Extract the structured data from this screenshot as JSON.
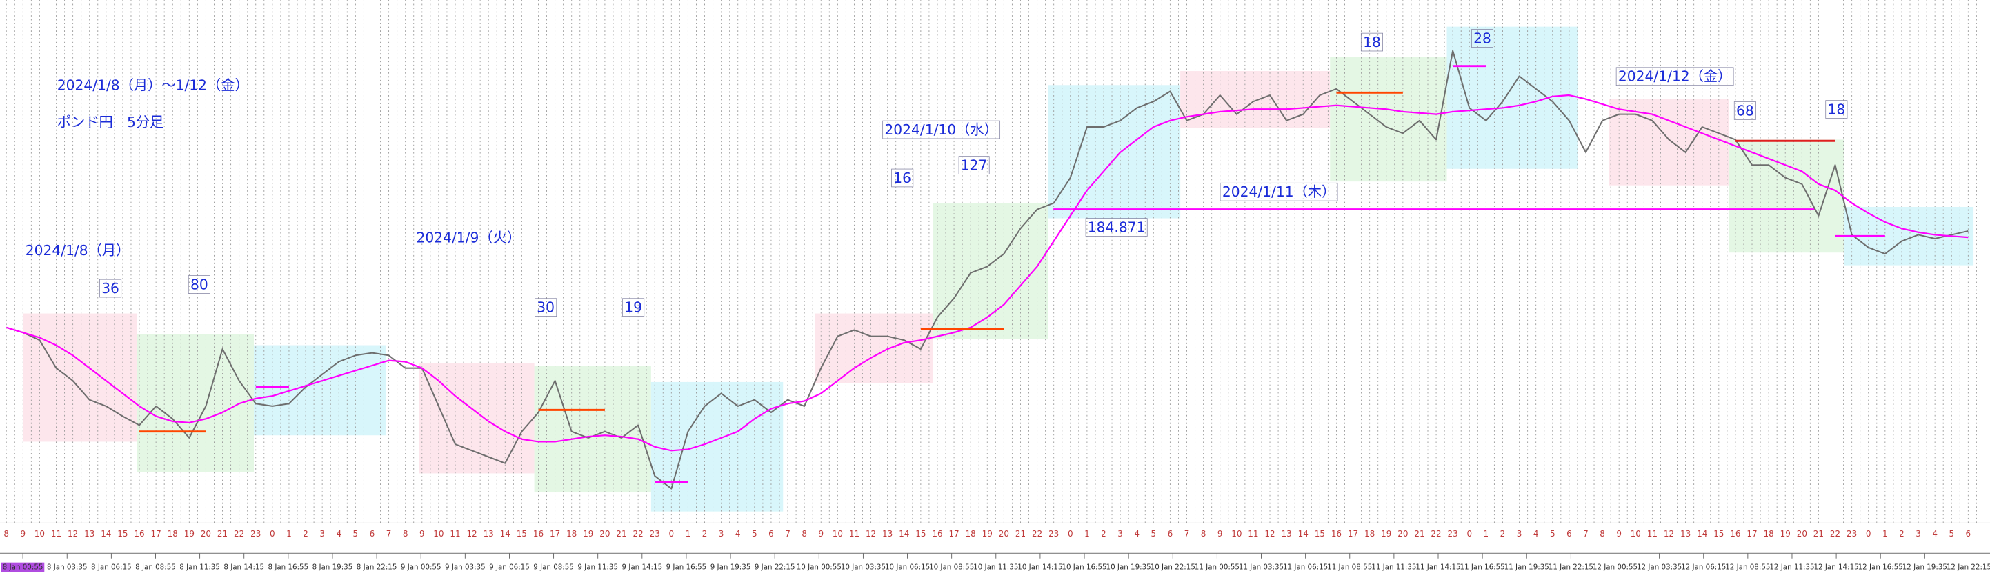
{
  "chart_data": {
    "type": "line",
    "title": "2024/1/8（月）～1/12（金）",
    "subtitle": "ポンド円　5分足",
    "categories": [
      "8",
      "9",
      "10",
      "11",
      "12",
      "13",
      "14",
      "15",
      "16",
      "17",
      "18",
      "19",
      "20",
      "21",
      "22",
      "23",
      "0",
      "1",
      "2",
      "3",
      "4",
      "5",
      "6",
      "7",
      "8",
      "9",
      "10",
      "11",
      "12",
      "13",
      "14",
      "15",
      "16",
      "17",
      "18",
      "19",
      "20",
      "21",
      "22",
      "23",
      "0",
      "1",
      "2",
      "3",
      "4",
      "5",
      "6",
      "7",
      "8",
      "9",
      "10",
      "11",
      "12",
      "13",
      "14",
      "15",
      "16",
      "17",
      "18",
      "19",
      "20",
      "21",
      "22",
      "23",
      "0",
      "1",
      "2",
      "3",
      "4",
      "5",
      "6",
      "7",
      "8",
      "9",
      "10",
      "11",
      "12",
      "13",
      "14",
      "15",
      "16",
      "17",
      "18",
      "19",
      "20",
      "21",
      "22",
      "23",
      "0",
      "1",
      "2",
      "3",
      "4",
      "5",
      "6",
      "7",
      "8",
      "9",
      "10",
      "11",
      "12",
      "13",
      "14",
      "15",
      "16",
      "17",
      "18",
      "19",
      "20",
      "21",
      "22",
      "23",
      "0",
      "1",
      "2",
      "3",
      "4",
      "5",
      "6"
    ],
    "series": [
      {
        "color": "#6e6e6e",
        "values": [
          183.94,
          183.9,
          183.84,
          183.62,
          183.52,
          183.37,
          183.32,
          183.24,
          183.17,
          183.32,
          183.22,
          183.07,
          183.32,
          183.77,
          183.52,
          183.34,
          183.32,
          183.34,
          183.47,
          183.57,
          183.67,
          183.72,
          183.74,
          183.72,
          183.62,
          183.62,
          183.32,
          183.02,
          182.97,
          182.92,
          182.87,
          183.12,
          183.27,
          183.52,
          183.12,
          183.07,
          183.12,
          183.07,
          183.17,
          182.77,
          182.67,
          183.12,
          183.32,
          183.42,
          183.32,
          183.37,
          183.27,
          183.37,
          183.32,
          183.62,
          183.87,
          183.92,
          183.87,
          183.87,
          183.84,
          183.77,
          184.02,
          184.17,
          184.37,
          184.42,
          184.52,
          184.72,
          184.87,
          184.92,
          185.12,
          185.52,
          185.52,
          185.57,
          185.67,
          185.72,
          185.8,
          185.57,
          185.62,
          185.77,
          185.62,
          185.72,
          185.77,
          185.57,
          185.62,
          185.77,
          185.82,
          185.72,
          185.62,
          185.52,
          185.47,
          185.57,
          185.42,
          186.12,
          185.67,
          185.57,
          185.72,
          185.92,
          185.82,
          185.72,
          185.57,
          185.32,
          185.57,
          185.62,
          185.62,
          185.57,
          185.42,
          185.32,
          185.52,
          185.47,
          185.42,
          185.22,
          185.22,
          185.12,
          185.07,
          184.82,
          185.22,
          184.67,
          184.57,
          184.52,
          184.62,
          184.67,
          184.64,
          184.67,
          184.7
        ]
      },
      {
        "color": "#ff00ff",
        "values": [
          183.94,
          183.9,
          183.86,
          183.8,
          183.72,
          183.62,
          183.52,
          183.42,
          183.32,
          183.24,
          183.2,
          183.19,
          183.22,
          183.27,
          183.34,
          183.38,
          183.4,
          183.44,
          183.48,
          183.52,
          183.56,
          183.6,
          183.64,
          183.68,
          183.67,
          183.62,
          183.52,
          183.4,
          183.3,
          183.2,
          183.12,
          183.06,
          183.04,
          183.04,
          183.06,
          183.08,
          183.09,
          183.08,
          183.06,
          183.0,
          182.97,
          182.98,
          183.02,
          183.07,
          183.12,
          183.22,
          183.3,
          183.34,
          183.36,
          183.42,
          183.52,
          183.62,
          183.7,
          183.77,
          183.82,
          183.84,
          183.87,
          183.9,
          183.94,
          184.02,
          184.12,
          184.27,
          184.42,
          184.62,
          184.82,
          185.02,
          185.17,
          185.32,
          185.42,
          185.52,
          185.57,
          185.6,
          185.62,
          185.64,
          185.65,
          185.66,
          185.66,
          185.66,
          185.67,
          185.68,
          185.69,
          185.68,
          185.67,
          185.66,
          185.64,
          185.63,
          185.62,
          185.64,
          185.65,
          185.66,
          185.67,
          185.69,
          185.72,
          185.76,
          185.77,
          185.74,
          185.7,
          185.66,
          185.64,
          185.62,
          185.57,
          185.52,
          185.47,
          185.42,
          185.37,
          185.32,
          185.27,
          185.22,
          185.17,
          185.07,
          185.02,
          184.92,
          184.84,
          184.77,
          184.72,
          184.69,
          184.67,
          184.66,
          184.65
        ]
      }
    ],
    "ylim": [
      182.4,
      186.52
    ],
    "hline": 184.871,
    "hline_color": "#ff00ff",
    "levels": [
      {
        "x": [
          8,
          12
        ],
        "value": 183.12,
        "color": "#ff4500"
      },
      {
        "x": [
          15,
          17
        ],
        "value": 183.47,
        "color": "#ff00ff"
      },
      {
        "x": [
          32,
          36
        ],
        "value": 183.29,
        "color": "#ff4500"
      },
      {
        "x": [
          39,
          41
        ],
        "value": 182.72,
        "color": "#ff00ff"
      },
      {
        "x": [
          55,
          60
        ],
        "value": 183.93,
        "color": "#ff4500"
      },
      {
        "x": [
          80,
          84
        ],
        "value": 185.79,
        "color": "#ff4500"
      },
      {
        "x": [
          87,
          89
        ],
        "value": 186.0,
        "color": "#ff00ff"
      },
      {
        "x": [
          104,
          110
        ],
        "value": 185.41,
        "color": "#e02020"
      },
      {
        "x": [
          110,
          113
        ],
        "value": 184.66,
        "color": "#ff00ff"
      }
    ],
    "annotations": [
      {
        "text": "2024/1/8（月）"
      },
      {
        "text": "2024/1/9（火）"
      },
      {
        "text": "2024/1/10（水）"
      },
      {
        "text": "2024/1/11（木）"
      },
      {
        "text": "2024/1/12（金）"
      },
      {
        "text": "36"
      },
      {
        "text": "80"
      },
      {
        "text": "30"
      },
      {
        "text": "19"
      },
      {
        "text": "16"
      },
      {
        "text": "127"
      },
      {
        "text": "18"
      },
      {
        "text": "28"
      },
      {
        "text": "68"
      },
      {
        "text": "18"
      }
    ],
    "time_labels": [
      "8 Jan 00:55",
      "8 Jan 03:35",
      "8 Jan 06:15",
      "8 Jan 08:55",
      "8 Jan 11:35",
      "8 Jan 14:15",
      "8 Jan 16:55",
      "8 Jan 19:35",
      "8 Jan 22:15",
      "9 Jan 00:55",
      "9 Jan 03:35",
      "9 Jan 06:15",
      "9 Jan 08:55",
      "9 Jan 11:35",
      "9 Jan 14:15",
      "9 Jan 16:55",
      "9 Jan 19:35",
      "9 Jan 22:15",
      "10 Jan 00:55",
      "10 Jan 03:35",
      "10 Jan 06:15",
      "10 Jan 08:55",
      "10 Jan 11:35",
      "10 Jan 14:15",
      "10 Jan 16:55",
      "10 Jan 19:35",
      "10 Jan 22:15",
      "11 Jan 00:55",
      "11 Jan 03:35",
      "11 Jan 06:15",
      "11 Jan 08:55",
      "11 Jan 11:35",
      "11 Jan 14:15",
      "11 Jan 16:55",
      "11 Jan 19:35",
      "11 Jan 22:15",
      "12 Jan 00:55",
      "12 Jan 03:35",
      "12 Jan 06:15",
      "12 Jan 08:55",
      "12 Jan 11:35",
      "12 Jan 14:15",
      "12 Jan 16:55",
      "12 Jan 19:35",
      "12 Jan 22:15"
    ]
  }
}
